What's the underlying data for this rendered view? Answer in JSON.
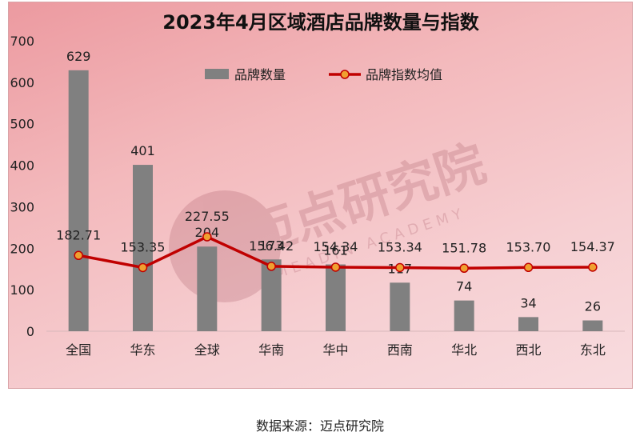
{
  "chart_data": {
    "type": "bar+line",
    "title": "2023年4月区域酒店品牌数量与指数",
    "categories": [
      "全国",
      "华东",
      "全球",
      "华南",
      "华中",
      "西南",
      "华北",
      "西北",
      "东北"
    ],
    "series": [
      {
        "name": "品牌数量",
        "type": "bar",
        "values": [
          629,
          401,
          204,
          173,
          161,
          117,
          74,
          34,
          26
        ],
        "color": "#808080"
      },
      {
        "name": "品牌指数均值",
        "type": "line",
        "values": [
          182.71,
          153.35,
          227.55,
          156.42,
          154.34,
          153.34,
          151.78,
          153.7,
          154.37
        ],
        "color": "#c00000",
        "marker_color": "#f0a030"
      }
    ],
    "y_ticks": [
      0,
      100,
      200,
      300,
      400,
      500,
      600,
      700
    ],
    "ylim": [
      0,
      700
    ],
    "legend_position": "top-center",
    "grid": false
  },
  "watermark": {
    "cn": "迈点研究院",
    "en": "MEADIN ACADEMY"
  },
  "source_note": "数据来源：迈点研究院"
}
